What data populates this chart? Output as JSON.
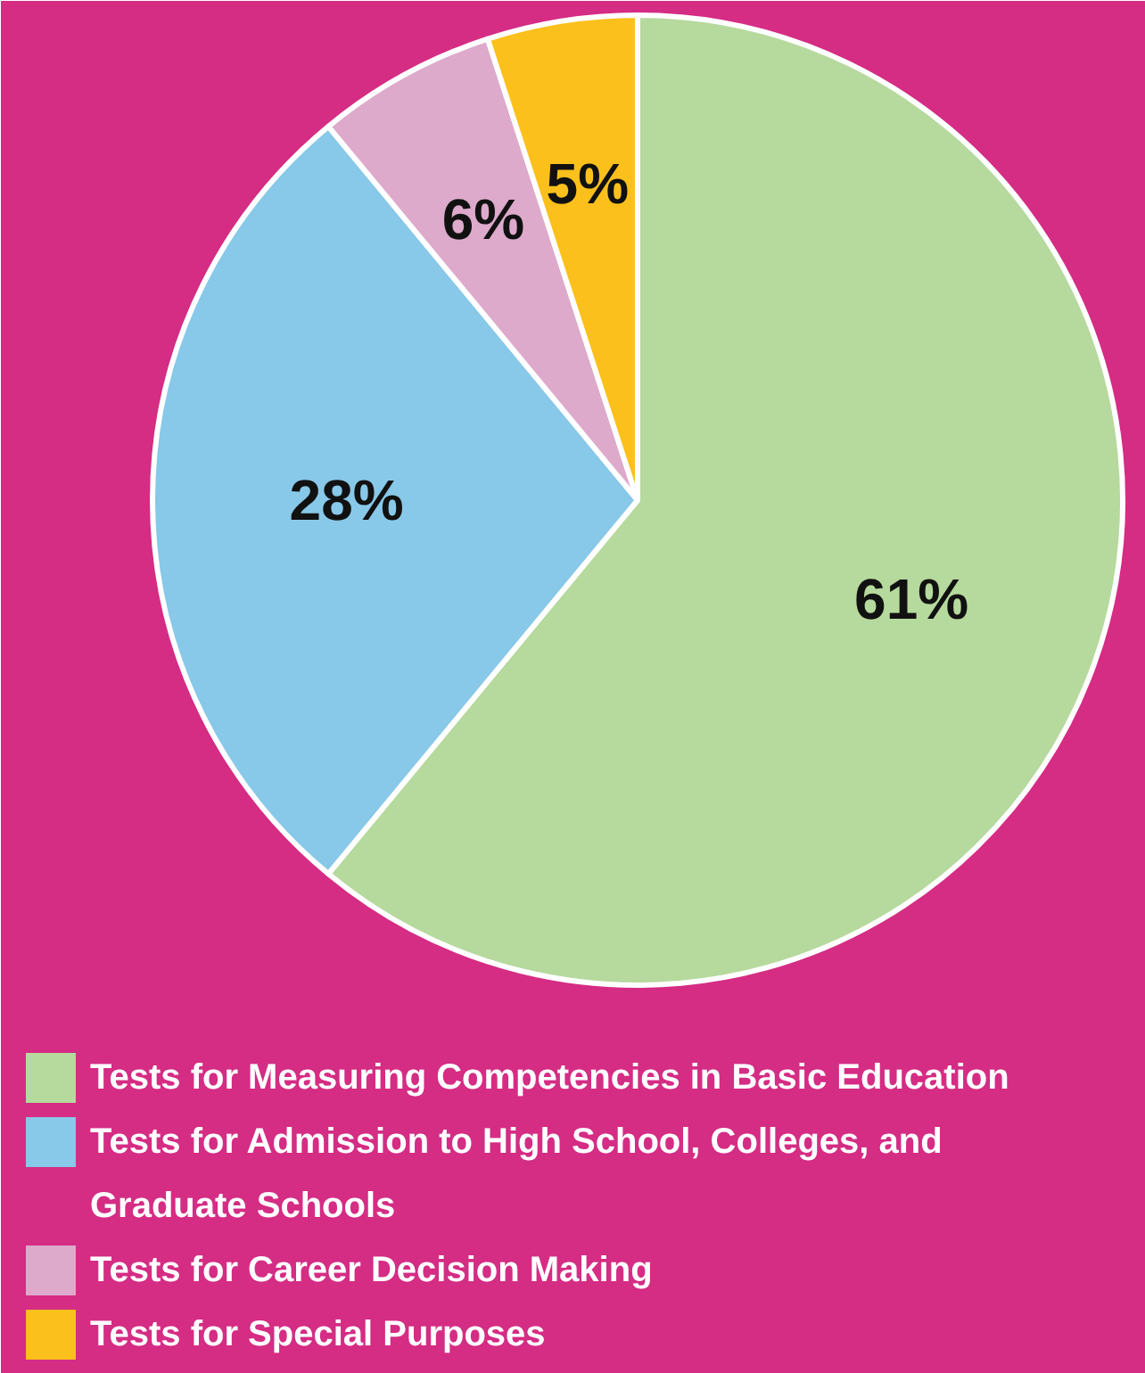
{
  "chart_data": {
    "type": "pie",
    "categories": [
      "Tests for Measuring Competencies in Basic Education",
      "Tests for Admission to High School, Colleges, and Graduate Schools",
      "Tests for Career Decision Making",
      "Tests for Special Purposes"
    ],
    "values": [
      61,
      28,
      6,
      5
    ],
    "value_labels": [
      "61%",
      "28%",
      "6%",
      "5%"
    ],
    "colors": [
      "#b6d99d",
      "#88c8e8",
      "#ddaacb",
      "#fcc01c"
    ],
    "legend": "bottom"
  }
}
